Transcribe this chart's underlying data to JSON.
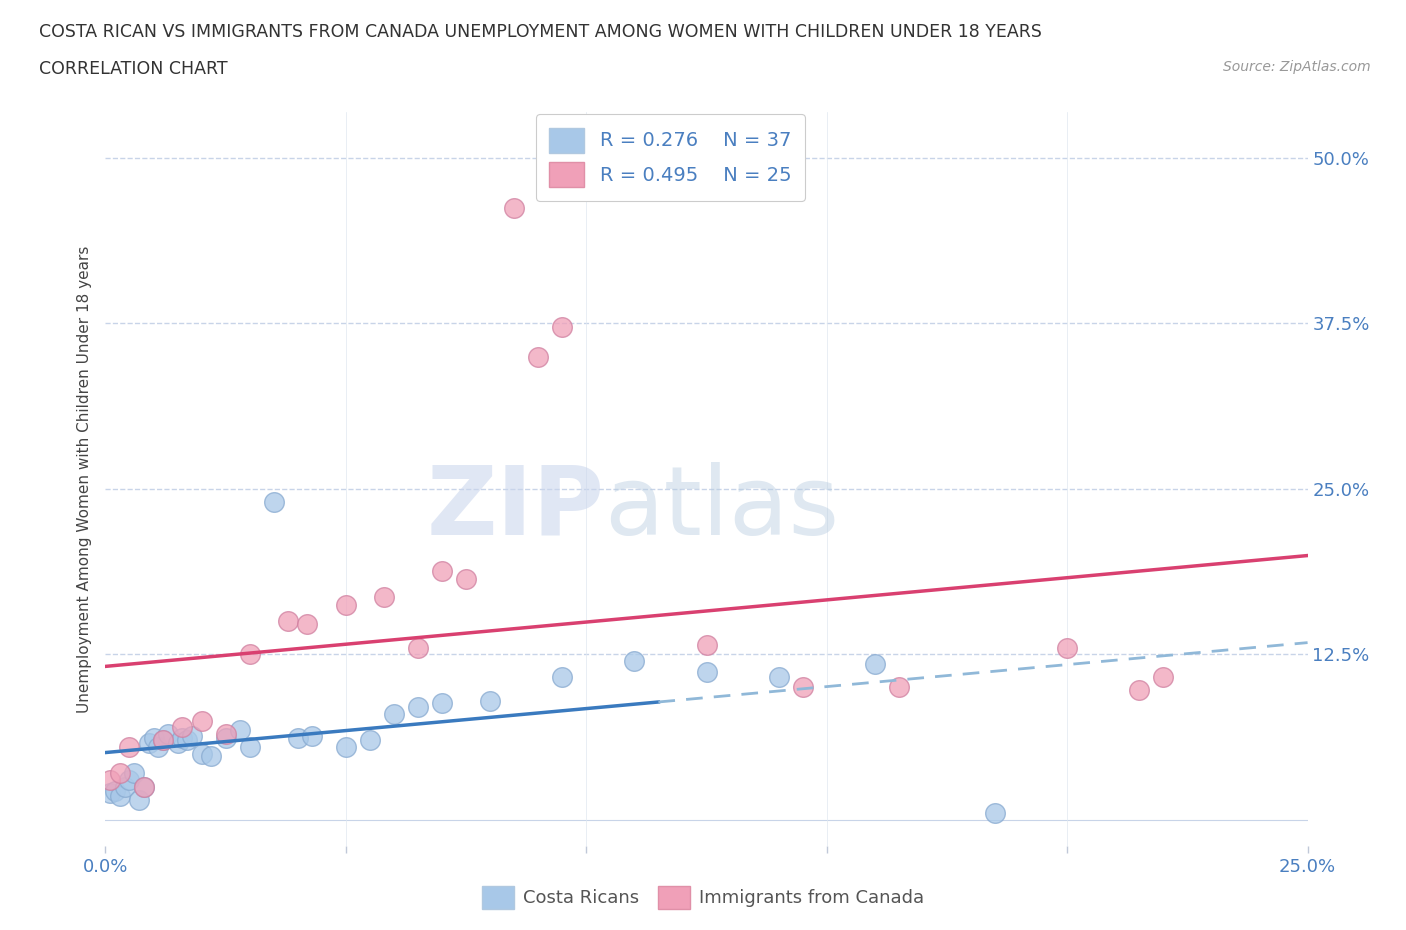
{
  "title_line1": "COSTA RICAN VS IMMIGRANTS FROM CANADA UNEMPLOYMENT AMONG WOMEN WITH CHILDREN UNDER 18 YEARS",
  "title_line2": "CORRELATION CHART",
  "source_text": "Source: ZipAtlas.com",
  "ylabel": "Unemployment Among Women with Children Under 18 years",
  "xlim": [
    0.0,
    0.25
  ],
  "ylim": [
    -0.02,
    0.535
  ],
  "costa_rican_color": "#a8c8e8",
  "immigrant_color": "#f0a0b8",
  "trend_blue_color": "#3a7abf",
  "trend_pink_color": "#d94070",
  "trend_blue_dash_color": "#90b8d8",
  "R_blue": 0.276,
  "N_blue": 37,
  "R_pink": 0.495,
  "N_pink": 25,
  "background_color": "#ffffff",
  "grid_color": "#c8d4e8",
  "axis_color": "#4a7fc0",
  "watermark_color": "#ccd8ee",
  "cr_x": [
    0.001,
    0.002,
    0.003,
    0.004,
    0.005,
    0.006,
    0.007,
    0.008,
    0.009,
    0.01,
    0.011,
    0.012,
    0.013,
    0.015,
    0.016,
    0.017,
    0.018,
    0.02,
    0.022,
    0.025,
    0.028,
    0.03,
    0.035,
    0.04,
    0.043,
    0.05,
    0.055,
    0.06,
    0.065,
    0.07,
    0.08,
    0.095,
    0.11,
    0.125,
    0.14,
    0.16,
    0.185
  ],
  "cr_y": [
    0.02,
    0.022,
    0.018,
    0.025,
    0.03,
    0.035,
    0.015,
    0.025,
    0.058,
    0.062,
    0.055,
    0.06,
    0.065,
    0.058,
    0.062,
    0.06,
    0.063,
    0.05,
    0.048,
    0.062,
    0.068,
    0.055,
    0.24,
    0.062,
    0.063,
    0.055,
    0.06,
    0.08,
    0.085,
    0.088,
    0.09,
    0.108,
    0.12,
    0.112,
    0.108,
    0.118,
    0.005
  ],
  "im_x": [
    0.001,
    0.003,
    0.005,
    0.008,
    0.012,
    0.016,
    0.02,
    0.025,
    0.03,
    0.038,
    0.042,
    0.05,
    0.058,
    0.065,
    0.07,
    0.075,
    0.085,
    0.09,
    0.095,
    0.125,
    0.145,
    0.165,
    0.2,
    0.215,
    0.22
  ],
  "im_y": [
    0.03,
    0.035,
    0.055,
    0.025,
    0.06,
    0.07,
    0.075,
    0.065,
    0.125,
    0.15,
    0.148,
    0.162,
    0.168,
    0.13,
    0.188,
    0.182,
    0.462,
    0.35,
    0.372,
    0.132,
    0.1,
    0.1,
    0.13,
    0.098,
    0.108
  ],
  "trend_blue_solid_end": 0.115,
  "trend_blue_intercept": 0.022,
  "trend_blue_slope": 0.6,
  "trend_pink_intercept": 0.02,
  "trend_pink_slope": 1.35
}
